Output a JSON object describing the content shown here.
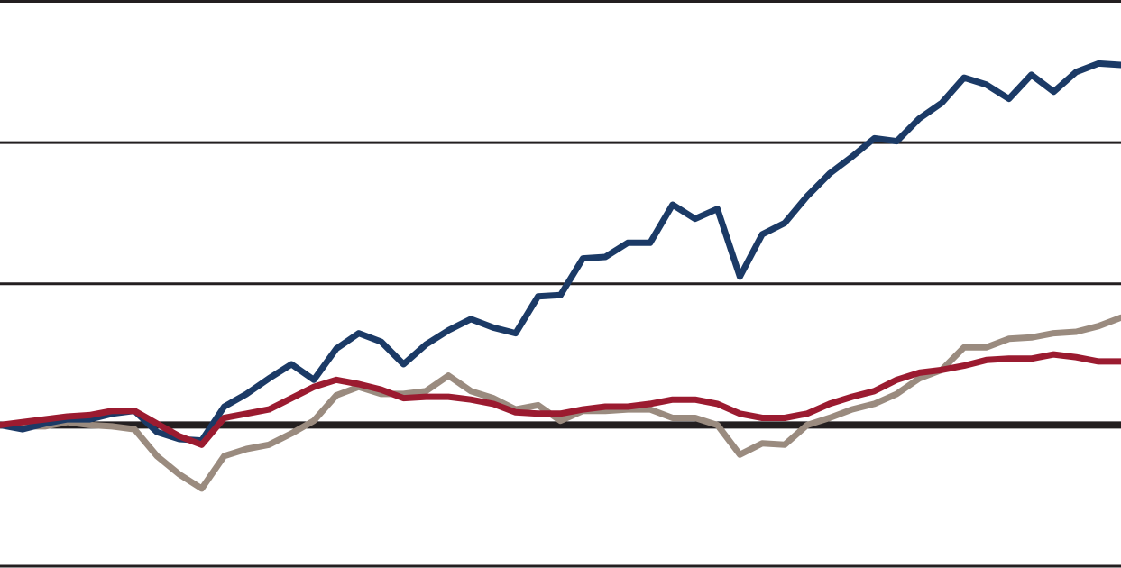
{
  "chart_data": {
    "type": "line",
    "ylim": [
      -1,
      3
    ],
    "yticks": [
      -1,
      0,
      1,
      2,
      3
    ],
    "grid": true,
    "series": [
      {
        "color": "#9a8b7f",
        "values": [
          0,
          -0.01,
          -0.01,
          0.02,
          0,
          -0.01,
          -0.03,
          -0.22,
          -0.35,
          -0.45,
          -0.22,
          -0.17,
          -0.14,
          -0.06,
          0.03,
          0.21,
          0.27,
          0.22,
          0.22,
          0.24,
          0.35,
          0.24,
          0.19,
          0.11,
          0.14,
          0.03,
          0.1,
          0.1,
          0.11,
          0.11,
          0.05,
          0.05,
          0,
          -0.21,
          -0.13,
          -0.14,
          0,
          0.05,
          0.11,
          0.15,
          0.22,
          0.33,
          0.39,
          0.55,
          0.55,
          0.61,
          0.62,
          0.65,
          0.66,
          0.7,
          0.76
        ]
      },
      {
        "color": "#1b3a66",
        "values": [
          0,
          -0.03,
          0.01,
          0.04,
          0.04,
          0.08,
          0.1,
          -0.05,
          -0.1,
          -0.11,
          0.13,
          0.22,
          0.33,
          0.43,
          0.32,
          0.54,
          0.65,
          0.59,
          0.43,
          0.57,
          0.67,
          0.75,
          0.69,
          0.65,
          0.91,
          0.92,
          1.18,
          1.19,
          1.29,
          1.29,
          1.56,
          1.46,
          1.53,
          1.05,
          1.35,
          1.43,
          1.62,
          1.78,
          1.9,
          2.03,
          2.01,
          2.17,
          2.28,
          2.46,
          2.41,
          2.31,
          2.48,
          2.36,
          2.5,
          2.56,
          2.55
        ]
      },
      {
        "color": "#9b1b30",
        "values": [
          0,
          0.02,
          0.04,
          0.06,
          0.07,
          0.1,
          0.1,
          0.01,
          -0.08,
          -0.14,
          0.05,
          0.08,
          0.11,
          0.19,
          0.27,
          0.32,
          0.29,
          0.25,
          0.19,
          0.2,
          0.2,
          0.18,
          0.15,
          0.09,
          0.08,
          0.08,
          0.11,
          0.13,
          0.13,
          0.15,
          0.18,
          0.18,
          0.15,
          0.08,
          0.05,
          0.05,
          0.08,
          0.15,
          0.2,
          0.24,
          0.32,
          0.37,
          0.39,
          0.42,
          0.46,
          0.47,
          0.47,
          0.5,
          0.48,
          0.45,
          0.45
        ]
      }
    ]
  }
}
